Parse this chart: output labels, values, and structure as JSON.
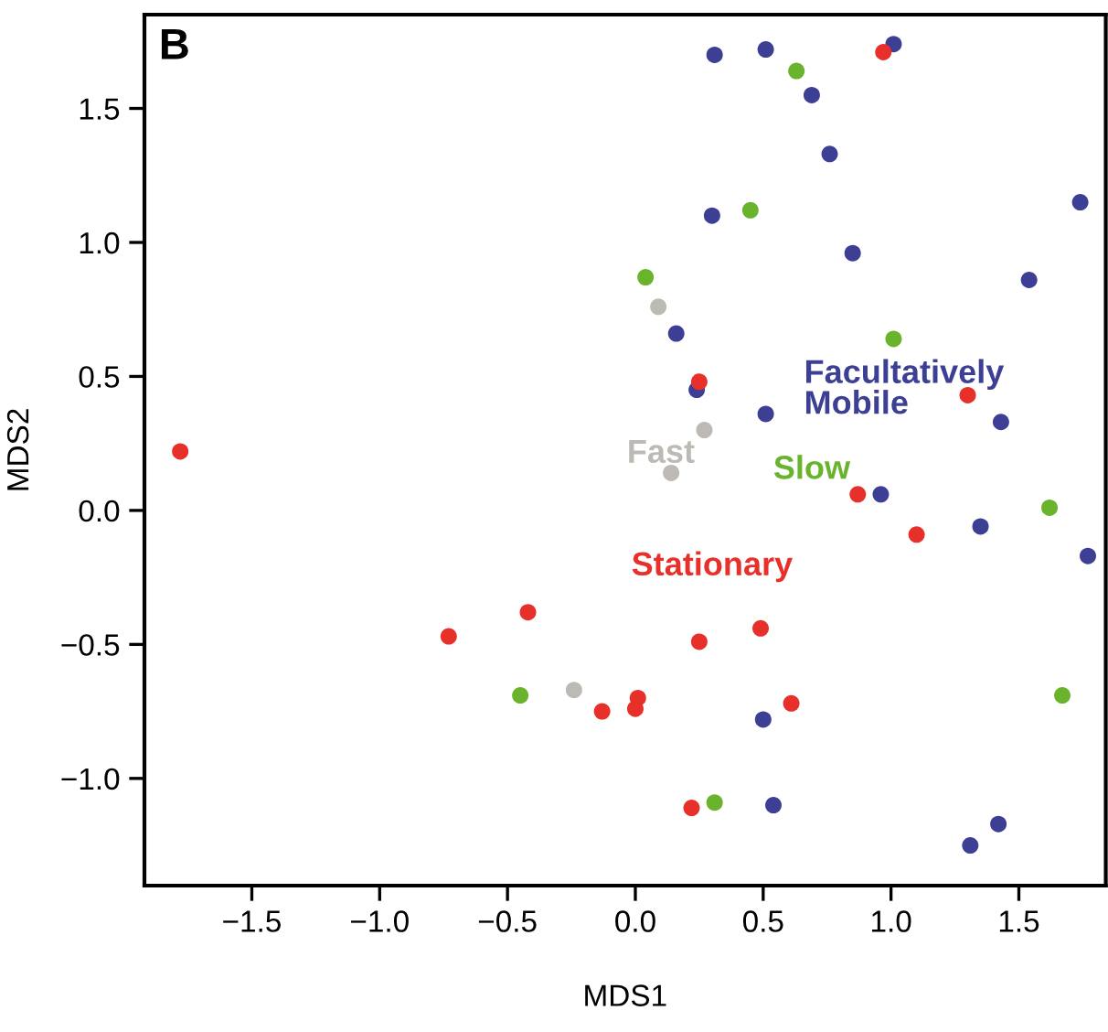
{
  "chart_data": {
    "type": "scatter",
    "title": "B",
    "xlabel": "MDS1",
    "ylabel": "MDS2",
    "xlim": [
      -1.92,
      1.84
    ],
    "ylim": [
      -1.4,
      1.85
    ],
    "xticks": [
      {
        "value": -1.5,
        "label": "−1.5"
      },
      {
        "value": -1,
        "label": "−1.0"
      },
      {
        "value": -0.5,
        "label": "−0.5"
      },
      {
        "value": 0,
        "label": "0.0"
      },
      {
        "value": 0.5,
        "label": "0.5"
      },
      {
        "value": 1,
        "label": "1.0"
      },
      {
        "value": 1.5,
        "label": "1.5"
      }
    ],
    "yticks": [
      {
        "value": -1,
        "label": "−1.0"
      },
      {
        "value": -0.5,
        "label": "−0.5"
      },
      {
        "value": 0,
        "label": "0.0"
      },
      {
        "value": 0.5,
        "label": "0.5"
      },
      {
        "value": 1,
        "label": "1.0"
      },
      {
        "value": 1.5,
        "label": "1.5"
      }
    ],
    "grid": false,
    "marker": "circle",
    "series": [
      {
        "name": "Facultatively\nMobile",
        "color": "#3c3f94",
        "x": [
          0.31,
          0.51,
          1.01,
          0.69,
          0.76,
          0.3,
          0.85,
          1.74,
          1.54,
          0.16,
          0.51,
          1.43,
          0.96,
          1.35,
          1.77,
          0.5,
          0.54,
          1.31,
          1.42,
          0.24
        ],
        "values": [
          1.7,
          1.72,
          1.74,
          1.55,
          1.33,
          1.1,
          0.96,
          1.15,
          0.86,
          0.66,
          0.36,
          0.33,
          0.06,
          -0.06,
          -0.17,
          -0.78,
          -1.1,
          -1.25,
          -1.17,
          0.45
        ]
      },
      {
        "name": "Slow",
        "color": "#6ab42d",
        "x": [
          0.63,
          0.45,
          0.04,
          1.01,
          1.62,
          -0.45,
          1.67,
          0.31
        ],
        "values": [
          1.64,
          1.12,
          0.87,
          0.64,
          0.01,
          -0.69,
          -0.69,
          -1.09
        ]
      },
      {
        "name": "Fast",
        "color": "#bdbab6",
        "x": [
          0.09,
          0.27,
          0.14,
          -0.24
        ],
        "values": [
          0.76,
          0.3,
          0.14,
          -0.67
        ]
      },
      {
        "name": "Stationary",
        "color": "#e8302b",
        "x": [
          -1.78,
          0.97,
          0.25,
          1.3,
          0.87,
          1.1,
          -0.42,
          -0.73,
          0.25,
          0.49,
          0.61,
          0.01,
          0.0,
          -0.13,
          0.22
        ],
        "values": [
          0.22,
          1.71,
          0.48,
          0.43,
          0.06,
          -0.09,
          -0.38,
          -0.47,
          -0.49,
          -0.44,
          -0.72,
          -0.7,
          -0.74,
          -0.75,
          -1.11
        ]
      }
    ]
  }
}
